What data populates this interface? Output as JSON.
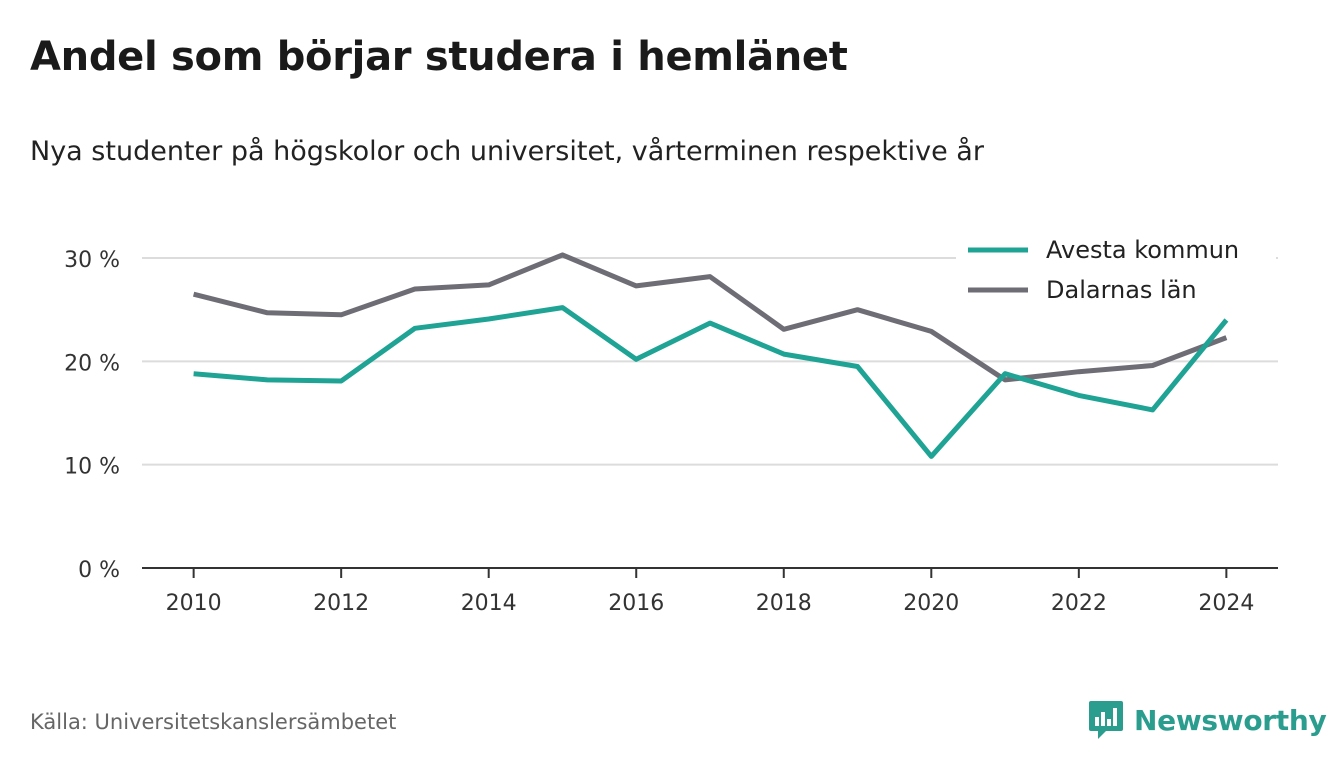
{
  "header": {
    "title": "Andel som börjar studera i hemlänet",
    "subtitle": "Nya studenter på högskolor och universitet, vårterminen respektive år"
  },
  "footer": {
    "source": "Källa: Universitetskanslersämbetet",
    "brand": "Newsworthy",
    "brand_color": "#2a9d8f",
    "brand_icon": "newsworthy-logo-icon"
  },
  "chart_data": {
    "type": "line",
    "title": "Andel som börjar studera i hemlänet",
    "subtitle": "Nya studenter på högskolor och universitet, vårterminen respektive år",
    "xlabel": "",
    "ylabel": "",
    "x": [
      2010,
      2011,
      2012,
      2013,
      2014,
      2015,
      2016,
      2017,
      2018,
      2019,
      2020,
      2021,
      2022,
      2023,
      2024
    ],
    "xticks": [
      2010,
      2012,
      2014,
      2016,
      2018,
      2020,
      2022,
      2024
    ],
    "xtick_labels": [
      "2010",
      "2012",
      "2014",
      "2016",
      "2018",
      "2020",
      "2022",
      "2024"
    ],
    "xlim": [
      2009.3,
      2024.7
    ],
    "ylim": [
      0,
      30
    ],
    "yticks": [
      0,
      10,
      20,
      30
    ],
    "ytick_labels": [
      "0 %",
      "10 %",
      "20 %",
      "30 %"
    ],
    "grid": true,
    "legend_position": "top-right",
    "series": [
      {
        "name": "Avesta kommun",
        "color": "#1fa394",
        "values": [
          18.8,
          18.2,
          18.1,
          23.2,
          24.1,
          25.2,
          20.2,
          23.7,
          20.7,
          19.5,
          10.8,
          18.8,
          16.7,
          15.3,
          24.0
        ]
      },
      {
        "name": "Dalarnas län",
        "color": "#6e6d75",
        "values": [
          26.5,
          24.7,
          24.5,
          27.0,
          27.4,
          30.3,
          27.3,
          28.2,
          23.1,
          25.0,
          22.9,
          18.2,
          19.0,
          19.6,
          22.3
        ]
      }
    ]
  }
}
